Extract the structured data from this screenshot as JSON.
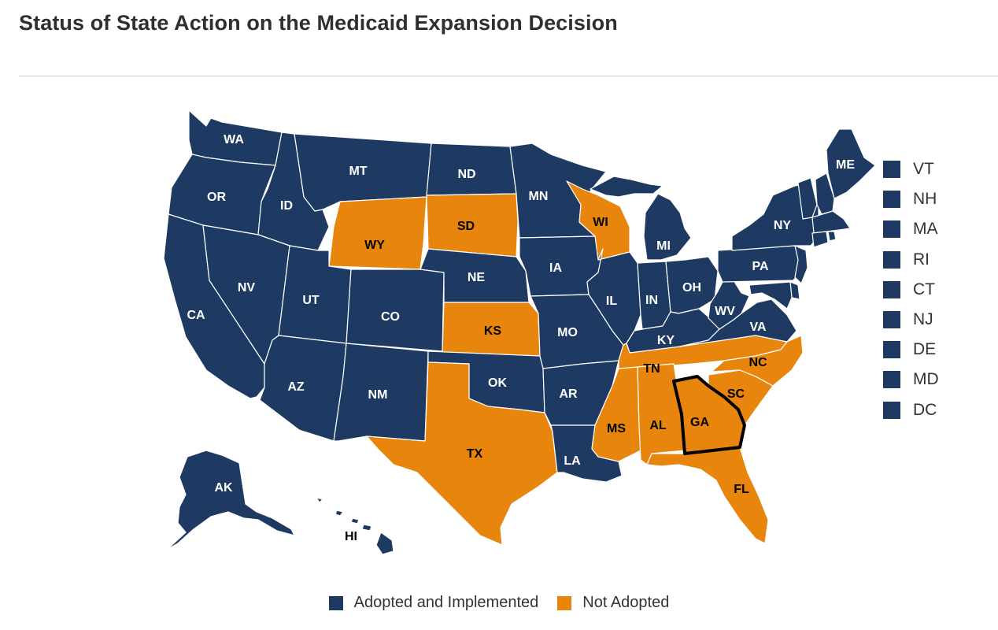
{
  "title": "Status of State Action on the Medicaid Expansion Decision",
  "colors": {
    "adopted": "#1e3a63",
    "not_adopted": "#e8850c",
    "highlight_outline": "#000000"
  },
  "legend": [
    {
      "label": "Adopted and Implemented",
      "status": "adopted"
    },
    {
      "label": "Not Adopted",
      "status": "not_adopted"
    }
  ],
  "small_states": [
    {
      "abbr": "VT",
      "status": "adopted"
    },
    {
      "abbr": "NH",
      "status": "adopted"
    },
    {
      "abbr": "MA",
      "status": "adopted"
    },
    {
      "abbr": "RI",
      "status": "adopted"
    },
    {
      "abbr": "CT",
      "status": "adopted"
    },
    {
      "abbr": "NJ",
      "status": "adopted"
    },
    {
      "abbr": "DE",
      "status": "adopted"
    },
    {
      "abbr": "MD",
      "status": "adopted"
    },
    {
      "abbr": "DC",
      "status": "adopted"
    }
  ],
  "states": [
    {
      "abbr": "WA",
      "status": "adopted"
    },
    {
      "abbr": "OR",
      "status": "adopted"
    },
    {
      "abbr": "CA",
      "status": "adopted"
    },
    {
      "abbr": "ID",
      "status": "adopted"
    },
    {
      "abbr": "NV",
      "status": "adopted"
    },
    {
      "abbr": "MT",
      "status": "adopted"
    },
    {
      "abbr": "WY",
      "status": "not_adopted"
    },
    {
      "abbr": "UT",
      "status": "adopted"
    },
    {
      "abbr": "CO",
      "status": "adopted"
    },
    {
      "abbr": "AZ",
      "status": "adopted"
    },
    {
      "abbr": "NM",
      "status": "adopted"
    },
    {
      "abbr": "ND",
      "status": "adopted"
    },
    {
      "abbr": "SD",
      "status": "not_adopted"
    },
    {
      "abbr": "NE",
      "status": "adopted"
    },
    {
      "abbr": "KS",
      "status": "not_adopted"
    },
    {
      "abbr": "OK",
      "status": "adopted"
    },
    {
      "abbr": "TX",
      "status": "not_adopted"
    },
    {
      "abbr": "MN",
      "status": "adopted"
    },
    {
      "abbr": "IA",
      "status": "adopted"
    },
    {
      "abbr": "MO",
      "status": "adopted"
    },
    {
      "abbr": "AR",
      "status": "adopted"
    },
    {
      "abbr": "LA",
      "status": "adopted"
    },
    {
      "abbr": "WI",
      "status": "not_adopted"
    },
    {
      "abbr": "IL",
      "status": "adopted"
    },
    {
      "abbr": "MI",
      "status": "adopted"
    },
    {
      "abbr": "IN",
      "status": "adopted"
    },
    {
      "abbr": "OH",
      "status": "adopted"
    },
    {
      "abbr": "KY",
      "status": "adopted"
    },
    {
      "abbr": "TN",
      "status": "not_adopted"
    },
    {
      "abbr": "MS",
      "status": "not_adopted"
    },
    {
      "abbr": "AL",
      "status": "not_adopted"
    },
    {
      "abbr": "GA",
      "status": "not_adopted",
      "highlighted": true
    },
    {
      "abbr": "FL",
      "status": "not_adopted"
    },
    {
      "abbr": "SC",
      "status": "not_adopted"
    },
    {
      "abbr": "NC",
      "status": "not_adopted"
    },
    {
      "abbr": "VA",
      "status": "adopted"
    },
    {
      "abbr": "WV",
      "status": "adopted"
    },
    {
      "abbr": "PA",
      "status": "adopted"
    },
    {
      "abbr": "NY",
      "status": "adopted"
    },
    {
      "abbr": "ME",
      "status": "adopted"
    },
    {
      "abbr": "AK",
      "status": "adopted"
    },
    {
      "abbr": "HI",
      "status": "adopted"
    }
  ]
}
